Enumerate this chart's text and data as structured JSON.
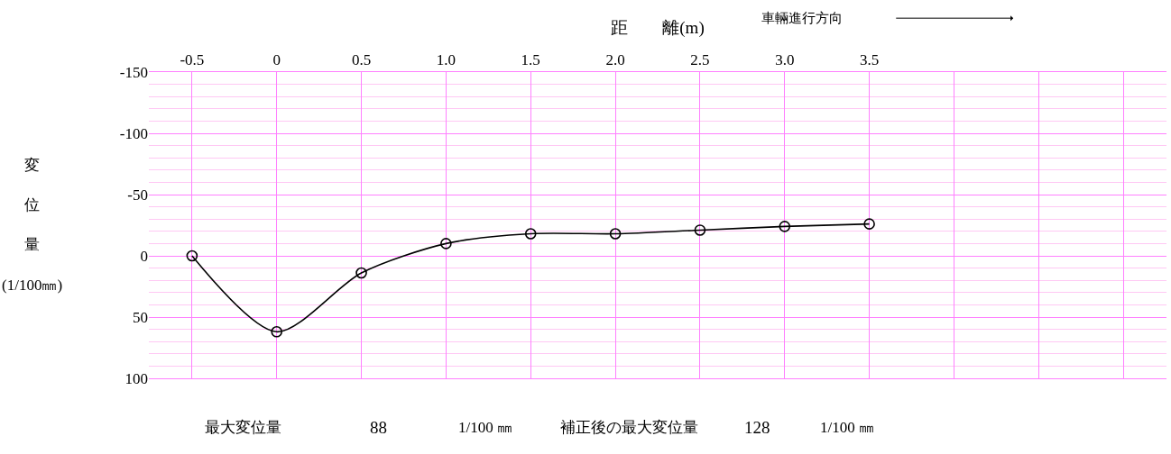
{
  "chart_data": {
    "type": "line",
    "xlabel": "距　　離(m)",
    "ylabel": "変位量(1/100㎜)",
    "x": [
      -0.5,
      0,
      0.5,
      1.0,
      1.5,
      2.0,
      2.5,
      3.0,
      3.5
    ],
    "series": [
      {
        "color": "#000000",
        "values": [
          0,
          62,
          14,
          -10,
          -18,
          -18,
          -21,
          -24,
          -26
        ]
      }
    ],
    "xlim": [
      -0.755,
      5.255
    ],
    "xticks": [
      {
        "value": -0.5,
        "label": "-0.5"
      },
      0,
      {
        "value": 0.5,
        "label": "0.5"
      },
      {
        "value": 1,
        "label": "1.0"
      },
      {
        "value": 1.5,
        "label": "1.5"
      },
      {
        "value": 2,
        "label": "2.0"
      },
      {
        "value": 2.5,
        "label": "2.5"
      },
      {
        "value": 3,
        "label": "3.0"
      },
      {
        "value": 3.5,
        "label": "3.5"
      },
      {
        "value": 4,
        "label": null
      },
      {
        "value": 4.5,
        "label": null
      },
      {
        "value": 5,
        "label": null
      }
    ],
    "ylim": [
      100,
      -150
    ],
    "yticks": [
      -150,
      {
        "value": -140,
        "label": null
      },
      {
        "value": -130,
        "label": null
      },
      {
        "value": -120,
        "label": null
      },
      {
        "value": -110,
        "label": null
      },
      -100,
      {
        "value": -90,
        "label": null
      },
      {
        "value": -80,
        "label": null
      },
      {
        "value": -70,
        "label": null
      },
      {
        "value": -60,
        "label": null
      },
      -50,
      {
        "value": -40,
        "label": null
      },
      {
        "value": -30,
        "label": null
      },
      {
        "value": -20,
        "label": null
      },
      {
        "value": -10,
        "label": null
      },
      0,
      {
        "value": 10,
        "label": null
      },
      {
        "value": 20,
        "label": null
      },
      {
        "value": 30,
        "label": null
      },
      {
        "value": 40,
        "label": null
      },
      50,
      {
        "value": 60,
        "label": null
      },
      {
        "value": 70,
        "label": null
      },
      {
        "value": 80,
        "label": null
      },
      {
        "value": 90,
        "label": null
      },
      100
    ],
    "grid": true,
    "marker": "circle",
    "line_style": "solid",
    "annotations": [
      "車輛進行方向",
      "最大変位量",
      "88",
      "1/100 ㎜",
      "補正後の最大変位量",
      "128",
      "1/100 ㎜"
    ]
  }
}
